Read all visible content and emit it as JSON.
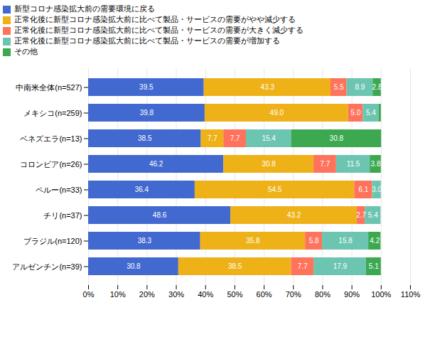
{
  "chart_data": {
    "type": "bar",
    "orientation": "horizontal",
    "stacked": true,
    "categories": [
      "中南米全体(n=527)",
      "メキシコ(n=259)",
      "ベネズエラ(n=13)",
      "コロンビア(n=26)",
      "ペルー(n=33)",
      "チリ(n=37)",
      "ブラジル(n=120)",
      "アルゼンチン(n=39)"
    ],
    "series": [
      {
        "name": "新型コロナ感染拡大前の需要環境に戻る",
        "values": [
          39.5,
          39.8,
          38.5,
          46.2,
          36.4,
          48.6,
          38.3,
          30.8
        ],
        "value_labels": [
          "39.5",
          "39.8",
          "38.5",
          "46.2",
          "36.4",
          "48.6",
          "38.3",
          "30.8"
        ]
      },
      {
        "name": "正常化後に新型コロナ感染拡大前に比べて製品・サービスの需要がやや減少する",
        "values": [
          43.3,
          49.0,
          7.7,
          30.8,
          54.5,
          43.2,
          35.8,
          38.5
        ],
        "value_labels": [
          "43.3",
          "49.0",
          "7.7",
          "30.8",
          "54.5",
          "43.2",
          "35.8",
          "38.5"
        ]
      },
      {
        "name": "正常化後に新型コロナ感染拡大前に比べて製品・サービスの需要が大きく減少する",
        "values": [
          5.5,
          5.0,
          7.7,
          7.7,
          6.1,
          2.7,
          5.8,
          7.7
        ],
        "value_labels": [
          "5.5",
          "5.0",
          "7.7",
          "7.7",
          "6.1",
          "2.7",
          "5.8",
          "7.7"
        ]
      },
      {
        "name": "正常化後に新型コロナ感染拡大前に比べて製品・サービスの需要が増加する",
        "values": [
          8.9,
          5.4,
          15.4,
          11.5,
          3.0,
          5.4,
          15.8,
          17.9
        ],
        "value_labels": [
          "8.9",
          "5.4",
          "15.4",
          "11.5",
          "3.0",
          "5.4",
          "15.8",
          "17.9"
        ]
      },
      {
        "name": "その他",
        "values": [
          2.8,
          0.8,
          30.8,
          3.8,
          0.0,
          0.0,
          4.2,
          5.1
        ],
        "value_labels": [
          "2.8",
          null,
          "30.8",
          "3.8",
          null,
          null,
          "4.2",
          "5.1"
        ]
      }
    ],
    "xlim": [
      0,
      110
    ],
    "xticks": [
      {
        "value": 0,
        "label": "0%"
      },
      {
        "value": 10,
        "label": "10%"
      },
      {
        "value": 20,
        "label": "20%"
      },
      {
        "value": 30,
        "label": "30%"
      },
      {
        "value": 40,
        "label": "40%"
      },
      {
        "value": 50,
        "label": "50%"
      },
      {
        "value": 60,
        "label": "60%"
      },
      {
        "value": 70,
        "label": "70%"
      },
      {
        "value": 80,
        "label": "80%"
      },
      {
        "value": 90,
        "label": "90%"
      },
      {
        "value": 100,
        "label": "100%"
      },
      {
        "value": 110,
        "label": "110%"
      }
    ],
    "grid": true,
    "data_labels": true,
    "legend": "top"
  }
}
